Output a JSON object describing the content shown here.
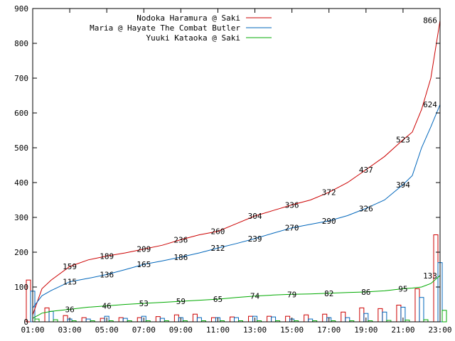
{
  "chart_data": {
    "type": "line",
    "xlim": [
      "01:00",
      "23:00"
    ],
    "ylim": [
      0,
      900
    ],
    "x_ticks": [
      "01:00",
      "03:00",
      "05:00",
      "07:00",
      "09:00",
      "11:00",
      "13:00",
      "15:00",
      "17:00",
      "19:00",
      "21:00",
      "23:00"
    ],
    "y_ticks": [
      "0",
      "100",
      "200",
      "300",
      "400",
      "500",
      "600",
      "700",
      "800",
      "900"
    ],
    "grid": false,
    "legend_position": "top-center",
    "series": [
      {
        "name": "Nodoka Haramura @ Saki",
        "color": "#cc0000",
        "cumulative_points": [
          {
            "x": "01:00",
            "y": 20
          },
          {
            "x": "01:30",
            "y": 95
          },
          {
            "x": "02:00",
            "y": 120
          },
          {
            "x": "03:00",
            "y": 159
          },
          {
            "x": "04:00",
            "y": 178
          },
          {
            "x": "05:00",
            "y": 189
          },
          {
            "x": "06:00",
            "y": 198
          },
          {
            "x": "07:00",
            "y": 209
          },
          {
            "x": "08:00",
            "y": 220
          },
          {
            "x": "09:00",
            "y": 236
          },
          {
            "x": "10:00",
            "y": 250
          },
          {
            "x": "11:00",
            "y": 260
          },
          {
            "x": "12:00",
            "y": 282
          },
          {
            "x": "13:00",
            "y": 304
          },
          {
            "x": "14:00",
            "y": 320
          },
          {
            "x": "15:00",
            "y": 336
          },
          {
            "x": "16:00",
            "y": 350
          },
          {
            "x": "17:00",
            "y": 372
          },
          {
            "x": "18:00",
            "y": 400
          },
          {
            "x": "19:00",
            "y": 437
          },
          {
            "x": "20:00",
            "y": 475
          },
          {
            "x": "21:00",
            "y": 523
          },
          {
            "x": "21:30",
            "y": 545
          },
          {
            "x": "22:00",
            "y": 610
          },
          {
            "x": "22:30",
            "y": 700
          },
          {
            "x": "23:00",
            "y": 866
          }
        ],
        "hourly_bars": [
          {
            "x": "01:00",
            "v": 120
          },
          {
            "x": "02:00",
            "v": 40
          },
          {
            "x": "03:00",
            "v": 18
          },
          {
            "x": "04:00",
            "v": 12
          },
          {
            "x": "05:00",
            "v": 10
          },
          {
            "x": "06:00",
            "v": 12
          },
          {
            "x": "07:00",
            "v": 12
          },
          {
            "x": "08:00",
            "v": 15
          },
          {
            "x": "09:00",
            "v": 20
          },
          {
            "x": "10:00",
            "v": 22
          },
          {
            "x": "11:00",
            "v": 12
          },
          {
            "x": "12:00",
            "v": 14
          },
          {
            "x": "13:00",
            "v": 16
          },
          {
            "x": "14:00",
            "v": 16
          },
          {
            "x": "15:00",
            "v": 16
          },
          {
            "x": "16:00",
            "v": 20
          },
          {
            "x": "17:00",
            "v": 22
          },
          {
            "x": "18:00",
            "v": 28
          },
          {
            "x": "19:00",
            "v": 40
          },
          {
            "x": "20:00",
            "v": 38
          },
          {
            "x": "21:00",
            "v": 48
          },
          {
            "x": "22:00",
            "v": 95
          },
          {
            "x": "23:00",
            "v": 250
          }
        ],
        "point_labels": [
          {
            "x": "03:00",
            "y": 159,
            "text": "159"
          },
          {
            "x": "05:00",
            "y": 189,
            "text": "189"
          },
          {
            "x": "07:00",
            "y": 209,
            "text": "209"
          },
          {
            "x": "09:00",
            "y": 236,
            "text": "236"
          },
          {
            "x": "11:00",
            "y": 260,
            "text": "260"
          },
          {
            "x": "13:00",
            "y": 304,
            "text": "304"
          },
          {
            "x": "15:00",
            "y": 336,
            "text": "336"
          },
          {
            "x": "17:00",
            "y": 372,
            "text": "372"
          },
          {
            "x": "19:00",
            "y": 437,
            "text": "437"
          },
          {
            "x": "21:00",
            "y": 523,
            "text": "523"
          },
          {
            "x": "23:00",
            "y": 866,
            "text": "866"
          }
        ]
      },
      {
        "name": "Maria @ Hayate The Combat Butler",
        "color": "#0066bb",
        "cumulative_points": [
          {
            "x": "01:00",
            "y": 40
          },
          {
            "x": "01:30",
            "y": 75
          },
          {
            "x": "02:00",
            "y": 90
          },
          {
            "x": "03:00",
            "y": 115
          },
          {
            "x": "04:00",
            "y": 125
          },
          {
            "x": "05:00",
            "y": 136
          },
          {
            "x": "06:00",
            "y": 150
          },
          {
            "x": "07:00",
            "y": 165
          },
          {
            "x": "08:00",
            "y": 175
          },
          {
            "x": "09:00",
            "y": 186
          },
          {
            "x": "10:00",
            "y": 198
          },
          {
            "x": "11:00",
            "y": 212
          },
          {
            "x": "12:00",
            "y": 225
          },
          {
            "x": "13:00",
            "y": 239
          },
          {
            "x": "14:00",
            "y": 255
          },
          {
            "x": "15:00",
            "y": 270
          },
          {
            "x": "16:00",
            "y": 280
          },
          {
            "x": "17:00",
            "y": 290
          },
          {
            "x": "18:00",
            "y": 305
          },
          {
            "x": "19:00",
            "y": 326
          },
          {
            "x": "20:00",
            "y": 350
          },
          {
            "x": "21:00",
            "y": 394
          },
          {
            "x": "21:30",
            "y": 420
          },
          {
            "x": "22:00",
            "y": 500
          },
          {
            "x": "22:30",
            "y": 560
          },
          {
            "x": "23:00",
            "y": 624
          }
        ],
        "hourly_bars": [
          {
            "x": "01:00",
            "v": 88
          },
          {
            "x": "02:00",
            "v": 30
          },
          {
            "x": "03:00",
            "v": 8
          },
          {
            "x": "04:00",
            "v": 8
          },
          {
            "x": "05:00",
            "v": 16
          },
          {
            "x": "06:00",
            "v": 10
          },
          {
            "x": "07:00",
            "v": 16
          },
          {
            "x": "08:00",
            "v": 10
          },
          {
            "x": "09:00",
            "v": 12
          },
          {
            "x": "10:00",
            "v": 12
          },
          {
            "x": "11:00",
            "v": 12
          },
          {
            "x": "12:00",
            "v": 12
          },
          {
            "x": "13:00",
            "v": 16
          },
          {
            "x": "14:00",
            "v": 14
          },
          {
            "x": "15:00",
            "v": 8
          },
          {
            "x": "16:00",
            "v": 8
          },
          {
            "x": "17:00",
            "v": 12
          },
          {
            "x": "18:00",
            "v": 12
          },
          {
            "x": "19:00",
            "v": 24
          },
          {
            "x": "20:00",
            "v": 28
          },
          {
            "x": "21:00",
            "v": 42
          },
          {
            "x": "22:00",
            "v": 70
          },
          {
            "x": "23:00",
            "v": 170
          }
        ],
        "point_labels": [
          {
            "x": "03:00",
            "y": 115,
            "text": "115"
          },
          {
            "x": "05:00",
            "y": 136,
            "text": "136"
          },
          {
            "x": "07:00",
            "y": 165,
            "text": "165"
          },
          {
            "x": "09:00",
            "y": 186,
            "text": "186"
          },
          {
            "x": "11:00",
            "y": 212,
            "text": "212"
          },
          {
            "x": "13:00",
            "y": 239,
            "text": "239"
          },
          {
            "x": "15:00",
            "y": 270,
            "text": "270"
          },
          {
            "x": "17:00",
            "y": 290,
            "text": "290"
          },
          {
            "x": "19:00",
            "y": 326,
            "text": "326"
          },
          {
            "x": "21:00",
            "y": 394,
            "text": "394"
          },
          {
            "x": "23:00",
            "y": 624,
            "text": "624"
          }
        ]
      },
      {
        "name": "Yuuki Kataoka @ Saki",
        "color": "#00aa00",
        "cumulative_points": [
          {
            "x": "01:00",
            "y": 10
          },
          {
            "x": "01:30",
            "y": 25
          },
          {
            "x": "02:00",
            "y": 30
          },
          {
            "x": "03:00",
            "y": 36
          },
          {
            "x": "04:00",
            "y": 42
          },
          {
            "x": "05:00",
            "y": 46
          },
          {
            "x": "06:00",
            "y": 50
          },
          {
            "x": "07:00",
            "y": 53
          },
          {
            "x": "08:00",
            "y": 56
          },
          {
            "x": "09:00",
            "y": 59
          },
          {
            "x": "10:00",
            "y": 62
          },
          {
            "x": "11:00",
            "y": 65
          },
          {
            "x": "12:00",
            "y": 70
          },
          {
            "x": "13:00",
            "y": 74
          },
          {
            "x": "14:00",
            "y": 77
          },
          {
            "x": "15:00",
            "y": 79
          },
          {
            "x": "16:00",
            "y": 80
          },
          {
            "x": "17:00",
            "y": 82
          },
          {
            "x": "18:00",
            "y": 84
          },
          {
            "x": "19:00",
            "y": 86
          },
          {
            "x": "20:00",
            "y": 89
          },
          {
            "x": "21:00",
            "y": 95
          },
          {
            "x": "21:30",
            "y": 97
          },
          {
            "x": "22:00",
            "y": 100
          },
          {
            "x": "22:30",
            "y": 110
          },
          {
            "x": "23:00",
            "y": 133
          }
        ],
        "hourly_bars": [
          {
            "x": "01:00",
            "v": 8
          },
          {
            "x": "02:00",
            "v": 6
          },
          {
            "x": "03:00",
            "v": 3
          },
          {
            "x": "04:00",
            "v": 3
          },
          {
            "x": "05:00",
            "v": 3
          },
          {
            "x": "06:00",
            "v": 3
          },
          {
            "x": "07:00",
            "v": 3
          },
          {
            "x": "08:00",
            "v": 3
          },
          {
            "x": "09:00",
            "v": 3
          },
          {
            "x": "10:00",
            "v": 3
          },
          {
            "x": "11:00",
            "v": 3
          },
          {
            "x": "12:00",
            "v": 3
          },
          {
            "x": "13:00",
            "v": 3
          },
          {
            "x": "14:00",
            "v": 3
          },
          {
            "x": "15:00",
            "v": 3
          },
          {
            "x": "16:00",
            "v": 3
          },
          {
            "x": "17:00",
            "v": 3
          },
          {
            "x": "18:00",
            "v": 3
          },
          {
            "x": "19:00",
            "v": 3
          },
          {
            "x": "20:00",
            "v": 4
          },
          {
            "x": "21:00",
            "v": 5
          },
          {
            "x": "22:00",
            "v": 6
          },
          {
            "x": "23:00",
            "v": 33
          }
        ],
        "point_labels": [
          {
            "x": "03:00",
            "y": 36,
            "text": "36"
          },
          {
            "x": "05:00",
            "y": 46,
            "text": "46"
          },
          {
            "x": "07:00",
            "y": 53,
            "text": "53"
          },
          {
            "x": "09:00",
            "y": 59,
            "text": "59"
          },
          {
            "x": "11:00",
            "y": 65,
            "text": "65"
          },
          {
            "x": "13:00",
            "y": 74,
            "text": "74"
          },
          {
            "x": "15:00",
            "y": 79,
            "text": "79"
          },
          {
            "x": "17:00",
            "y": 82,
            "text": "82"
          },
          {
            "x": "19:00",
            "y": 86,
            "text": "86"
          },
          {
            "x": "21:00",
            "y": 95,
            "text": "95"
          },
          {
            "x": "23:00",
            "y": 133,
            "text": "133"
          }
        ]
      }
    ]
  }
}
